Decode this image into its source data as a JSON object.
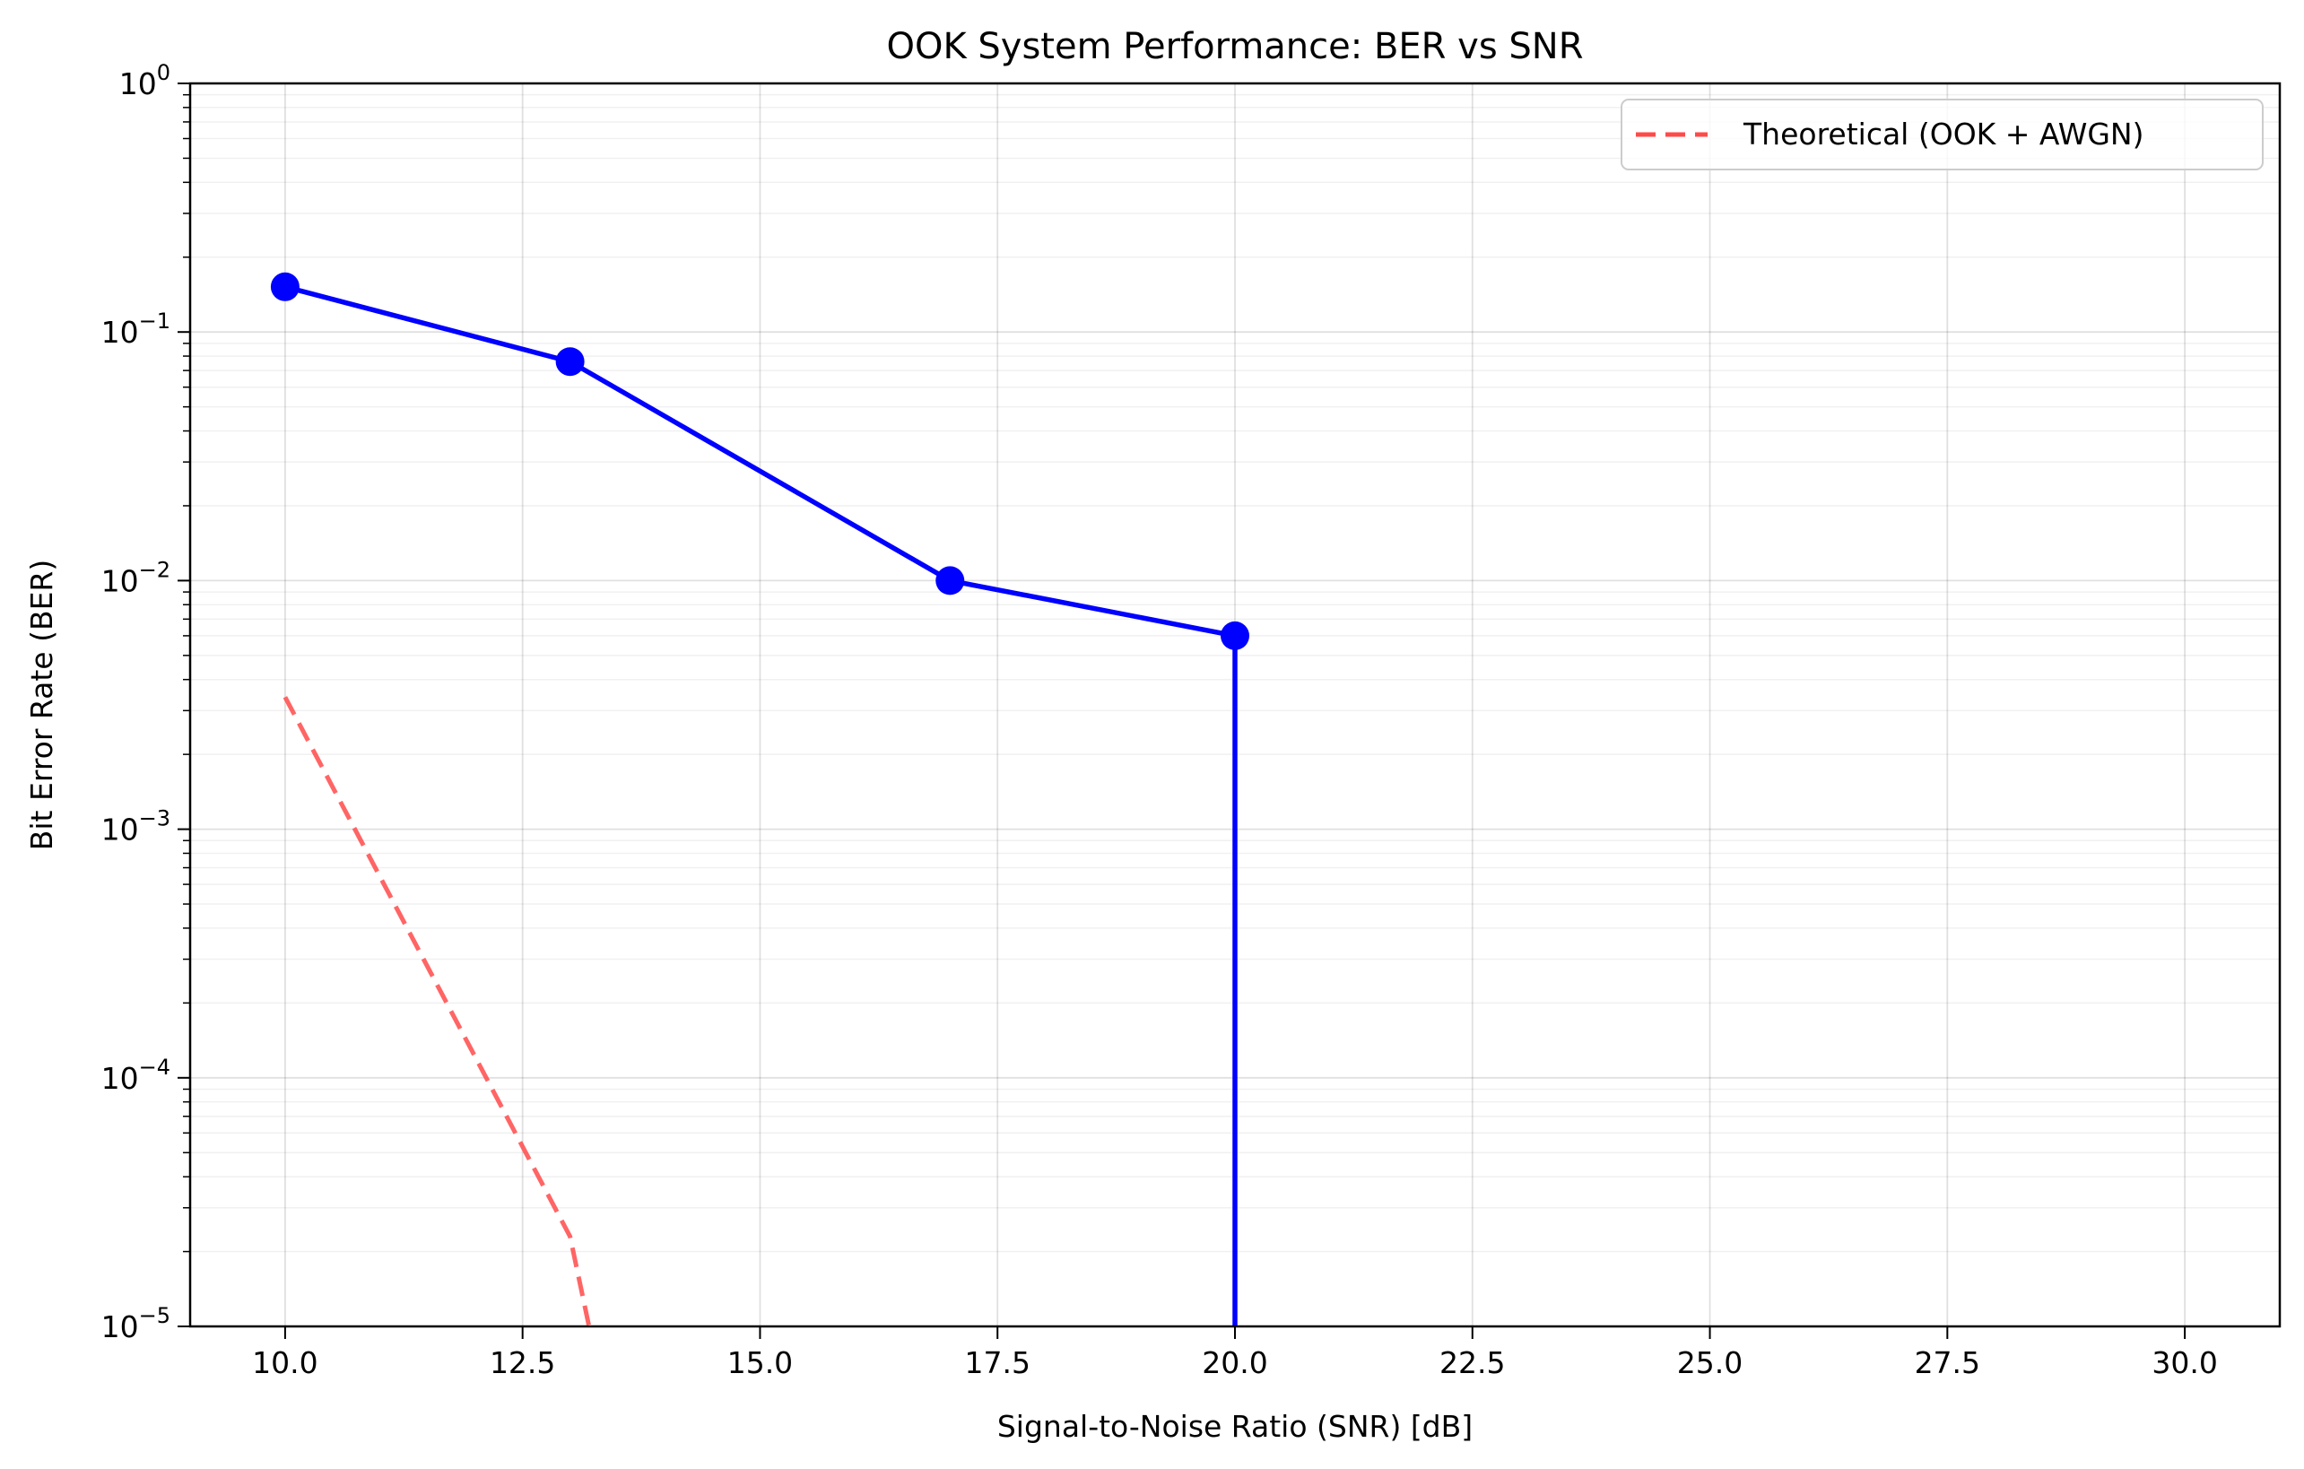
{
  "chart_data": {
    "type": "line",
    "title": "OOK System Performance: BER vs SNR",
    "xlabel": "Signal-to-Noise Ratio (SNR) [dB]",
    "ylabel": "Bit Error Rate (BER)",
    "xlim": [
      9.0,
      31.0
    ],
    "ylim": [
      1e-05,
      1
    ],
    "yscale": "log",
    "grid": true,
    "legend_position": "top-right",
    "x_ticks": [
      10.0,
      12.5,
      15.0,
      17.5,
      20.0,
      22.5,
      25.0,
      27.5,
      30.0
    ],
    "x_tick_labels": [
      "10.0",
      "12.5",
      "15.0",
      "17.5",
      "20.0",
      "22.5",
      "25.0",
      "27.5",
      "30.0"
    ],
    "y_ticks": [
      {
        "value": 1,
        "base": "10",
        "exp": "0"
      },
      {
        "value": 0.1,
        "base": "10",
        "exp": "−1"
      },
      {
        "value": 0.01,
        "base": "10",
        "exp": "−2"
      },
      {
        "value": 0.001,
        "base": "10",
        "exp": "−3"
      },
      {
        "value": 0.0001,
        "base": "10",
        "exp": "−4"
      },
      {
        "value": 1e-05,
        "base": "10",
        "exp": "−5"
      }
    ],
    "series": [
      {
        "color": "#0000ff",
        "style": "solid-with-markers",
        "x": [
          10,
          13,
          17,
          20,
          20
        ],
        "y": [
          0.152,
          0.076,
          0.01,
          0.006,
          1e-05
        ]
      },
      {
        "name": "Theoretical (OOK + AWGN)",
        "color": "#ff4a4a",
        "style": "dashed",
        "x": [
          10,
          13,
          13.2
        ],
        "y": [
          0.0034,
          2.3e-05,
          1e-05
        ]
      }
    ],
    "markers": {
      "x": [
        10,
        13,
        17,
        20
      ],
      "y": [
        0.152,
        0.076,
        0.01,
        0.006
      ]
    }
  }
}
